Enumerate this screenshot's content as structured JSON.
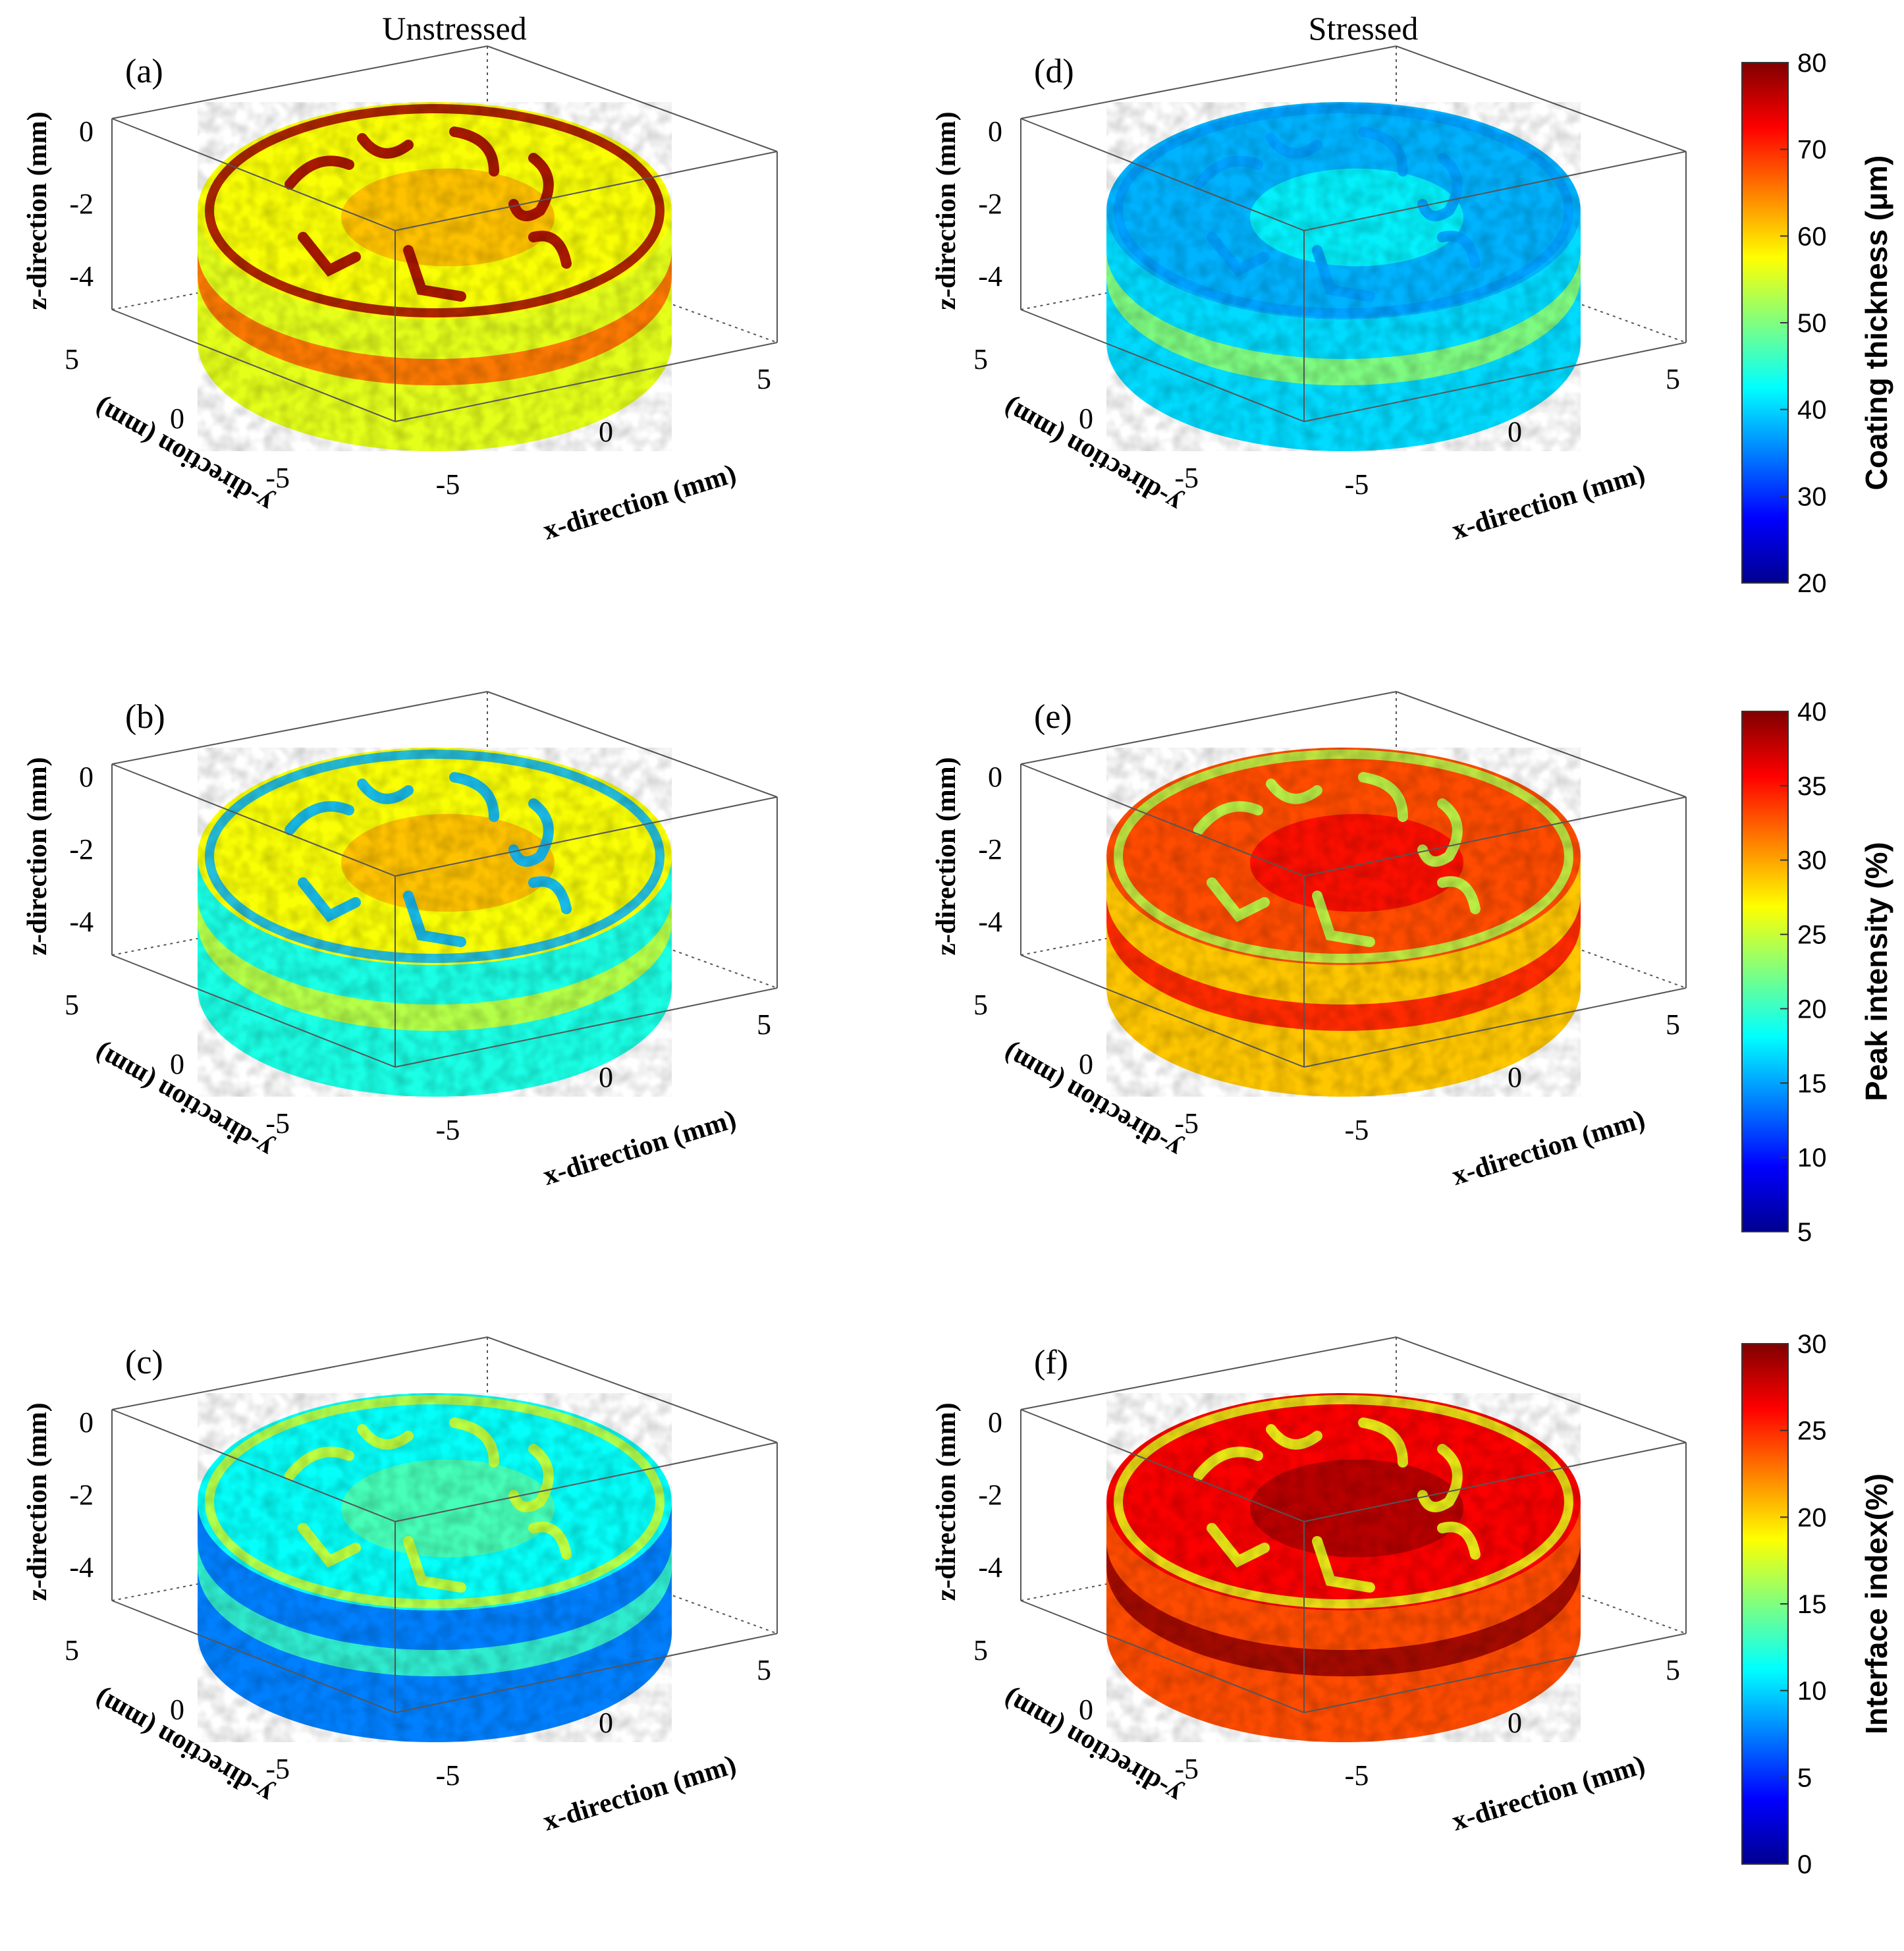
{
  "figure": {
    "column_titles": [
      "Unstressed",
      "Stressed"
    ]
  },
  "chart_data": [
    {
      "type": "heatmap",
      "panel": "(a)",
      "condition": "Unstressed",
      "quantity": "Coating thickness",
      "colormap": "jet",
      "clim": [
        20,
        80
      ],
      "top_level": 0.62,
      "side_level": 0.6,
      "lettering_level": 0.97,
      "xlabel": "x-direction (mm)",
      "ylabel": "y-direction (mm)",
      "zlabel": "z-direction (mm)",
      "xticks": [
        "-5",
        "0",
        "5"
      ],
      "yticks": [
        "-5",
        "0",
        "5"
      ],
      "zticks": [
        "0",
        "-2",
        "-4"
      ]
    },
    {
      "type": "heatmap",
      "panel": "(b)",
      "condition": "Unstressed",
      "quantity": "Peak intensity",
      "colormap": "jet",
      "clim": [
        5,
        40
      ],
      "top_level": 0.62,
      "side_level": 0.4,
      "lettering_level": 0.3,
      "xlabel": "x-direction (mm)",
      "ylabel": "y-direction (mm)",
      "zlabel": "z-direction (mm)",
      "xticks": [
        "-5",
        "0",
        "5"
      ],
      "yticks": [
        "-5",
        "0",
        "5"
      ],
      "zticks": [
        "0",
        "-2",
        "-4"
      ]
    },
    {
      "type": "heatmap",
      "panel": "(c)",
      "condition": "Unstressed",
      "quantity": "Interface index",
      "colormap": "jet",
      "clim": [
        0,
        30
      ],
      "top_level": 0.38,
      "side_level": 0.25,
      "lettering_level": 0.58,
      "xlabel": "x-direction (mm)",
      "ylabel": "y-direction (mm)",
      "zlabel": "z-direction (mm)",
      "xticks": [
        "-5",
        "0",
        "5"
      ],
      "yticks": [
        "-5",
        "0",
        "5"
      ],
      "zticks": [
        "0",
        "-2",
        "-4"
      ]
    },
    {
      "type": "heatmap",
      "panel": "(d)",
      "condition": "Stressed",
      "quantity": "Coating thickness",
      "colormap": "jet",
      "clim": [
        20,
        80
      ],
      "top_level": 0.3,
      "side_level": 0.34,
      "lettering_level": 0.28,
      "xlabel": "x-direction (mm)",
      "ylabel": "y-direction (mm)",
      "zlabel": "z-direction (mm)",
      "xticks": [
        "-5",
        "0",
        "5"
      ],
      "yticks": [
        "-5",
        "0",
        "5"
      ],
      "zticks": [
        "0",
        "-2",
        "-4"
      ]
    },
    {
      "type": "heatmap",
      "panel": "(e)",
      "condition": "Stressed",
      "quantity": "Peak intensity",
      "colormap": "jet",
      "clim": [
        5,
        40
      ],
      "top_level": 0.8,
      "side_level": 0.68,
      "lettering_level": 0.55,
      "xlabel": "x-direction (mm)",
      "ylabel": "y-direction (mm)",
      "zlabel": "z-direction (mm)",
      "xticks": [
        "-5",
        "0",
        "5"
      ],
      "yticks": [
        "-5",
        "0",
        "5"
      ],
      "zticks": [
        "0",
        "-2",
        "-4"
      ]
    },
    {
      "type": "heatmap",
      "panel": "(f)",
      "condition": "Stressed",
      "quantity": "Interface index",
      "colormap": "jet",
      "clim": [
        0,
        30
      ],
      "top_level": 0.88,
      "side_level": 0.8,
      "lettering_level": 0.6,
      "xlabel": "x-direction (mm)",
      "ylabel": "y-direction (mm)",
      "zlabel": "z-direction (mm)",
      "xticks": [
        "-5",
        "0",
        "5"
      ],
      "yticks": [
        "-5",
        "0",
        "5"
      ],
      "zticks": [
        "0",
        "-2",
        "-4"
      ]
    }
  ],
  "colorbars": [
    {
      "label": "Coating thickness (μm)",
      "min": 20,
      "max": 80,
      "ticks": [
        "80",
        "70",
        "60",
        "50",
        "40",
        "30",
        "20"
      ]
    },
    {
      "label": "Peak intensity (%)",
      "min": 5,
      "max": 40,
      "ticks": [
        "40",
        "35",
        "30",
        "25",
        "20",
        "15",
        "10",
        "5"
      ]
    },
    {
      "label": "Interface index(%)",
      "min": 0,
      "max": 30,
      "ticks": [
        "30",
        "25",
        "20",
        "15",
        "10",
        "5",
        "0"
      ]
    }
  ],
  "colors": {
    "axis": "#555555",
    "text": "#111111"
  }
}
